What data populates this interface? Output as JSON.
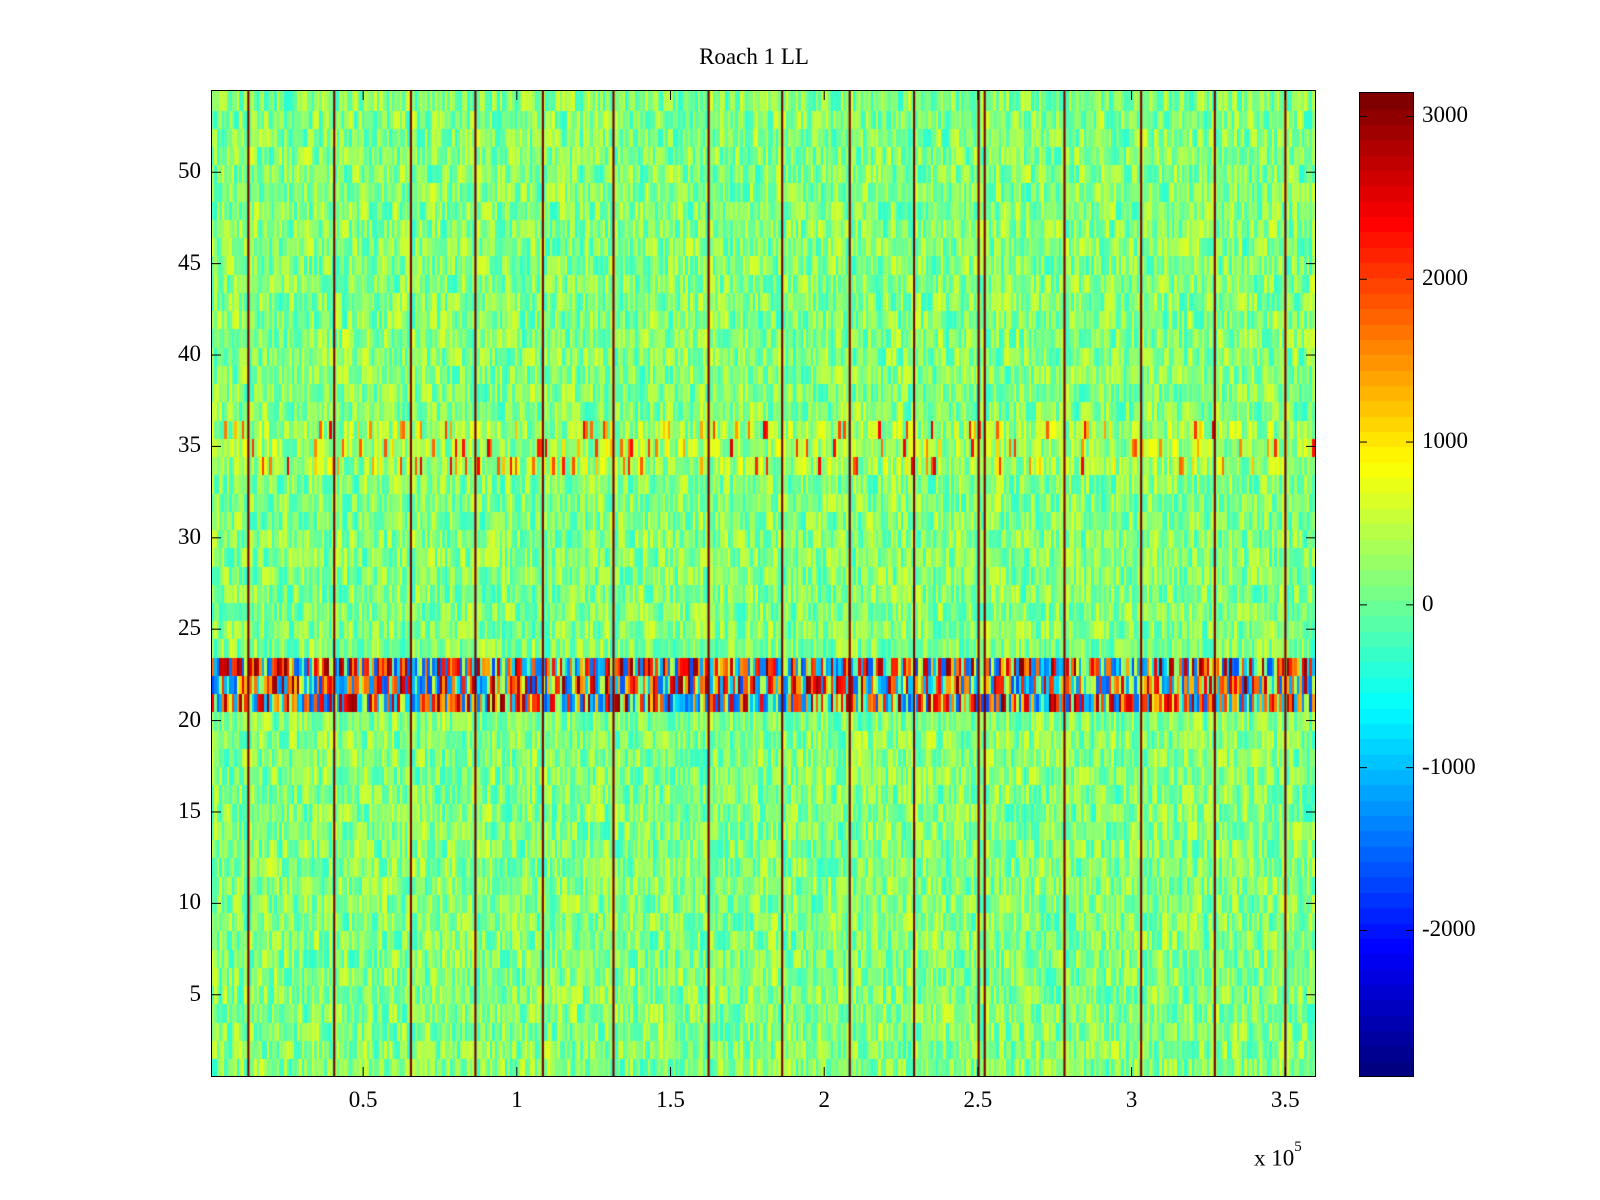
{
  "chart_data": {
    "type": "heatmap",
    "title": "Roach 1 LL",
    "xlabel": "",
    "ylabel": "",
    "x_multiplier_label": "x 10",
    "x_multiplier_exponent": "5",
    "xlim": [
      500,
      360000
    ],
    "ylim": [
      0.5,
      54.5
    ],
    "x_ticks": [
      {
        "value": 0.5,
        "label": "0.5"
      },
      {
        "value": 1,
        "label": "1"
      },
      {
        "value": 1.5,
        "label": "1.5"
      },
      {
        "value": 2,
        "label": "2"
      },
      {
        "value": 2.5,
        "label": "2.5"
      },
      {
        "value": 3,
        "label": "3"
      },
      {
        "value": 3.5,
        "label": "3.5"
      }
    ],
    "y_ticks": [
      {
        "value": 5,
        "label": "5"
      },
      {
        "value": 10,
        "label": "10"
      },
      {
        "value": 15,
        "label": "15"
      },
      {
        "value": 20,
        "label": "20"
      },
      {
        "value": 25,
        "label": "25"
      },
      {
        "value": 30,
        "label": "30"
      },
      {
        "value": 35,
        "label": "35"
      },
      {
        "value": 40,
        "label": "40"
      },
      {
        "value": 45,
        "label": "45"
      },
      {
        "value": 50,
        "label": "50"
      }
    ],
    "colorbar": {
      "colormap": "jet",
      "range": [
        -2900,
        3150
      ],
      "ticks": [
        {
          "value": 3000,
          "label": "3000"
        },
        {
          "value": 2000,
          "label": "2000"
        },
        {
          "value": 1000,
          "label": "1000"
        },
        {
          "value": 0,
          "label": "0"
        },
        {
          "value": -1000,
          "label": "-1000"
        },
        {
          "value": -2000,
          "label": "-2000"
        }
      ]
    },
    "rows": 54,
    "background_value_range": [
      -400,
      700
    ],
    "high_variance_rows": [
      21,
      22,
      23
    ],
    "high_variance_value_range": [
      -1700,
      3150
    ],
    "elevated_rows": [
      34,
      35,
      36
    ],
    "vertical_artifact_x": [
      12000,
      40000,
      65000,
      86000,
      108000,
      131000,
      162000,
      186000,
      208000,
      229000,
      250000,
      252000,
      278000,
      303000,
      327000,
      350000
    ],
    "vertical_artifact_value": 3100
  }
}
